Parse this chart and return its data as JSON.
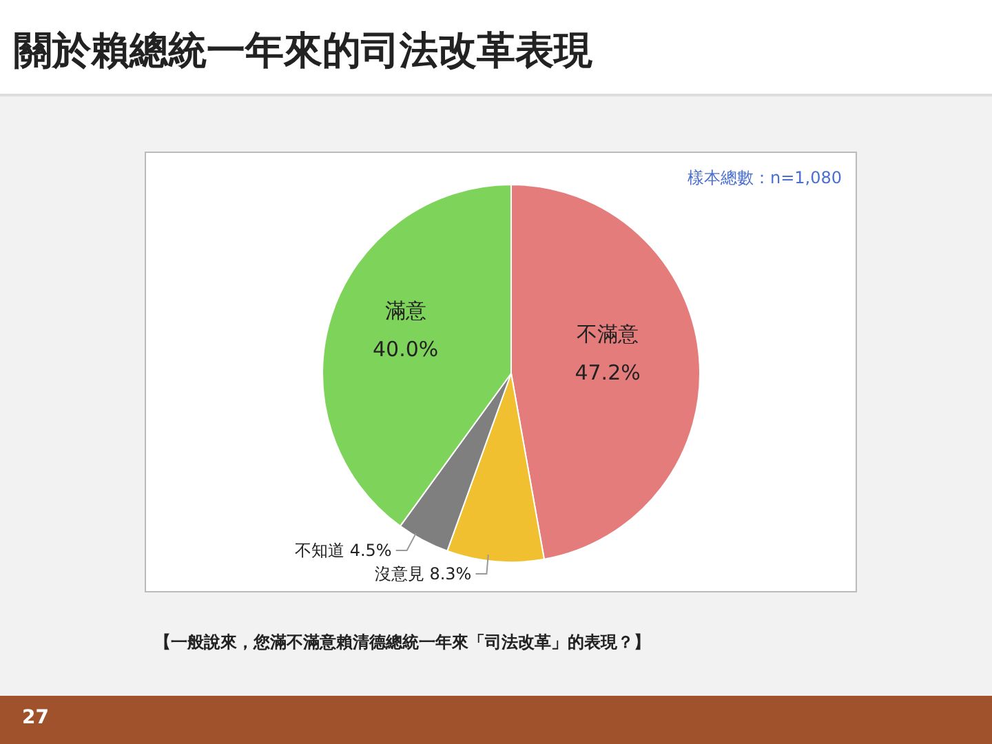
{
  "chart_data": {
    "type": "pie",
    "title": "關於賴總統一年來的司法改革表現",
    "categories": [
      "不滿意",
      "沒意見",
      "不知道",
      "滿意"
    ],
    "values": [
      47.2,
      8.3,
      4.5,
      40.0
    ],
    "value_labels": [
      "47.2%",
      "8.3%",
      "4.5%",
      "40.0%"
    ],
    "colors": [
      "#e57c7c",
      "#f0c030",
      "#7f7f7f",
      "#7ed35a"
    ],
    "annotations": [
      "樣本總數：n=1,080",
      "【一般說來，您滿不滿意賴清德總統一年來「司法改革」的表現？】",
      "27"
    ],
    "legend": false
  }
}
